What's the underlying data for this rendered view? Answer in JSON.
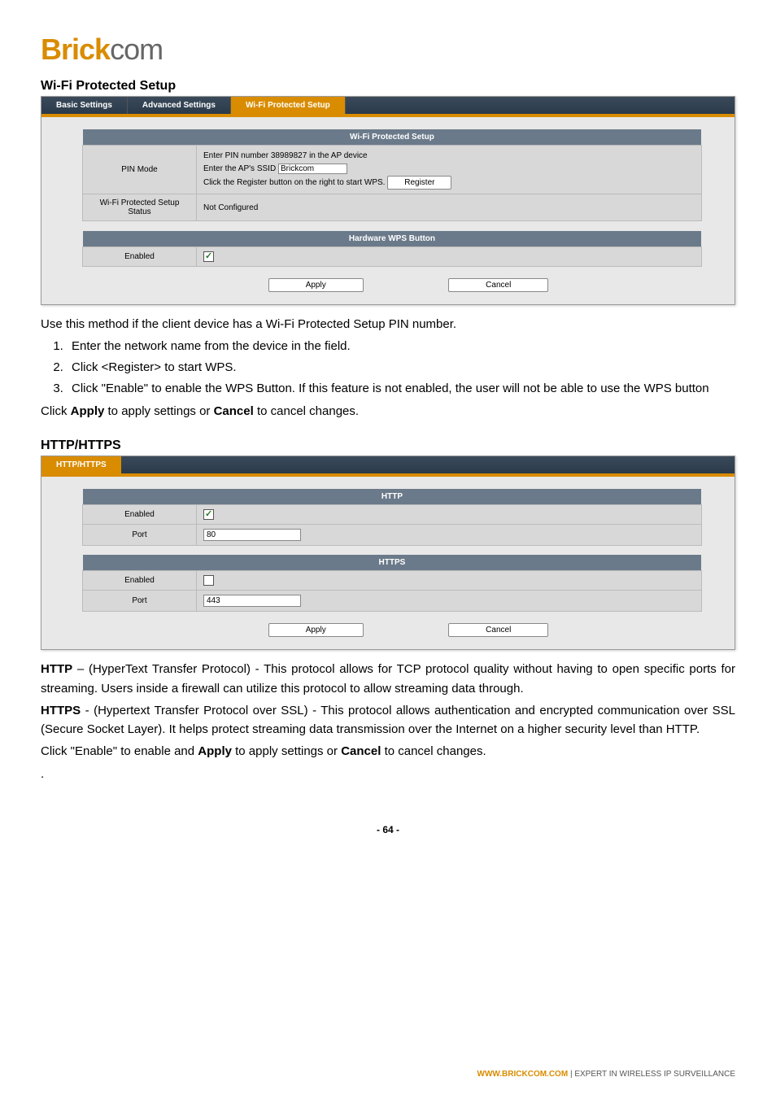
{
  "logo": {
    "part1": "Brick",
    "part2": "com"
  },
  "section1": {
    "title": "Wi-Fi Protected Setup",
    "tabs": {
      "basic": "Basic Settings",
      "advanced": "Advanced Settings",
      "wps": "Wi-Fi Protected Setup"
    },
    "wps_table": {
      "header": "Wi-Fi Protected Setup",
      "pin_mode_label": "PIN Mode",
      "pin_line1": "Enter PIN number 38989827 in the AP device",
      "pin_line2_pre": "Enter the AP's SSID",
      "ssid_value": "Brickcom",
      "pin_line3": "Click the Register button on the right to start WPS.",
      "register_btn": "Register",
      "status_label": "Wi-Fi Protected Setup Status",
      "status_value": "Not Configured"
    },
    "hw_table": {
      "header": "Hardware WPS Button",
      "enabled_label": "Enabled",
      "enabled_checked": true
    },
    "apply_btn": "Apply",
    "cancel_btn": "Cancel"
  },
  "instructions": {
    "intro": "Use this method if the client device has a Wi-Fi Protected Setup PIN number.",
    "step1": "Enter the network name from the device in the field.",
    "step2": "Click <Register> to start WPS.",
    "step3": "Click \"Enable\" to enable the WPS Button.   If this feature is not enabled, the user will not be able to use the WPS button",
    "apply_pre": "Click ",
    "apply_bold": "Apply",
    "apply_mid": " to apply settings or ",
    "cancel_bold": "Cancel",
    "apply_post": " to cancel changes."
  },
  "section2": {
    "title": "HTTP/HTTPS",
    "tab": "HTTP/HTTPS",
    "http": {
      "header": "HTTP",
      "enabled_label": "Enabled",
      "enabled_checked": true,
      "port_label": "Port",
      "port_value": "80"
    },
    "https": {
      "header": "HTTPS",
      "enabled_label": "Enabled",
      "enabled_checked": false,
      "port_label": "Port",
      "port_value": "443"
    },
    "apply_btn": "Apply",
    "cancel_btn": "Cancel"
  },
  "desc": {
    "http_bold": "HTTP",
    "http_text": " – (HyperText Transfer Protocol) - This protocol allows for TCP protocol quality without having to open specific ports for streaming. Users inside a firewall can utilize this protocol to allow streaming data through.",
    "https_bold": "HTTPS",
    "https_text": " - (Hypertext Transfer Protocol over SSL) - This protocol allows authentication and encrypted communication over SSL (Secure Socket Layer). It helps protect streaming data transmission over the Internet on a higher security level than HTTP.",
    "enable_pre": "Click \"Enable\" to enable and ",
    "apply_bold": "Apply",
    "enable_mid": " to apply settings or ",
    "cancel_bold": "Cancel",
    "enable_post": " to cancel changes.",
    "dot": "."
  },
  "footer": {
    "page": "- 64 -",
    "url": "WWW.BRICKCOM.COM",
    "tagline": "   |   EXPERT IN WIRELESS IP SURVEILLANCE"
  }
}
